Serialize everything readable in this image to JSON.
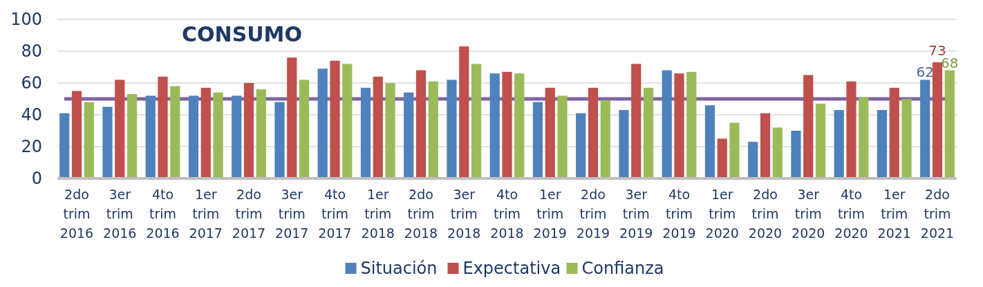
{
  "chart_data": {
    "type": "bar",
    "title": "CONSUMO",
    "categories": [
      "2do\ntrim\n2016",
      "3er\ntrim\n2016",
      "4to\ntrim\n2016",
      "1er\ntrim\n2017",
      "2do\ntrim\n2017",
      "3er\ntrim\n2017",
      "4to\ntrim\n2017",
      "1er\ntrim\n2018",
      "2do\ntrim\n2018",
      "3er\ntrim\n2018",
      "4to\ntrim\n2018",
      "1er\ntrim\n2019",
      "2do\ntrim\n2019",
      "3er\ntrim\n2019",
      "4to\ntrim\n2019",
      "1er\ntrim\n2020",
      "2do\ntrim\n2020",
      "3er\ntrim\n2020",
      "4to\ntrim\n2020",
      "1er\ntrim\n2021",
      "2do\ntrim\n2021"
    ],
    "series": [
      {
        "name": "Situación",
        "color": "#4f81bd",
        "values": [
          41,
          45,
          52,
          52,
          52,
          48,
          69,
          57,
          54,
          62,
          66,
          48,
          41,
          43,
          68,
          46,
          23,
          30,
          43,
          43,
          62
        ],
        "value_labels": [
          null,
          null,
          null,
          null,
          null,
          null,
          null,
          null,
          null,
          null,
          null,
          null,
          null,
          null,
          null,
          null,
          null,
          null,
          null,
          null,
          "62"
        ]
      },
      {
        "name": "Expectativa",
        "color": "#c0504d",
        "values": [
          55,
          62,
          64,
          57,
          60,
          76,
          74,
          64,
          68,
          83,
          67,
          57,
          57,
          72,
          66,
          25,
          41,
          65,
          61,
          57,
          73
        ],
        "value_labels": [
          null,
          null,
          null,
          null,
          null,
          null,
          null,
          null,
          null,
          null,
          null,
          null,
          null,
          null,
          null,
          null,
          null,
          null,
          null,
          null,
          "73"
        ]
      },
      {
        "name": "Confianza",
        "color": "#9bbb59",
        "values": [
          48,
          53,
          58,
          54,
          56,
          62,
          72,
          60,
          61,
          72,
          66,
          52,
          49,
          57,
          67,
          35,
          32,
          47,
          51,
          50,
          68
        ],
        "value_labels": [
          null,
          null,
          null,
          null,
          null,
          null,
          null,
          null,
          null,
          null,
          null,
          null,
          null,
          null,
          null,
          null,
          null,
          null,
          null,
          null,
          "68"
        ]
      }
    ],
    "ylim": [
      0,
      100
    ],
    "yticks": [
      0,
      20,
      40,
      60,
      80,
      100
    ],
    "grid": "y",
    "legend": "bottom",
    "ref_lines": [
      {
        "axis": "y",
        "value": 50,
        "color": "#8064a2"
      }
    ]
  }
}
